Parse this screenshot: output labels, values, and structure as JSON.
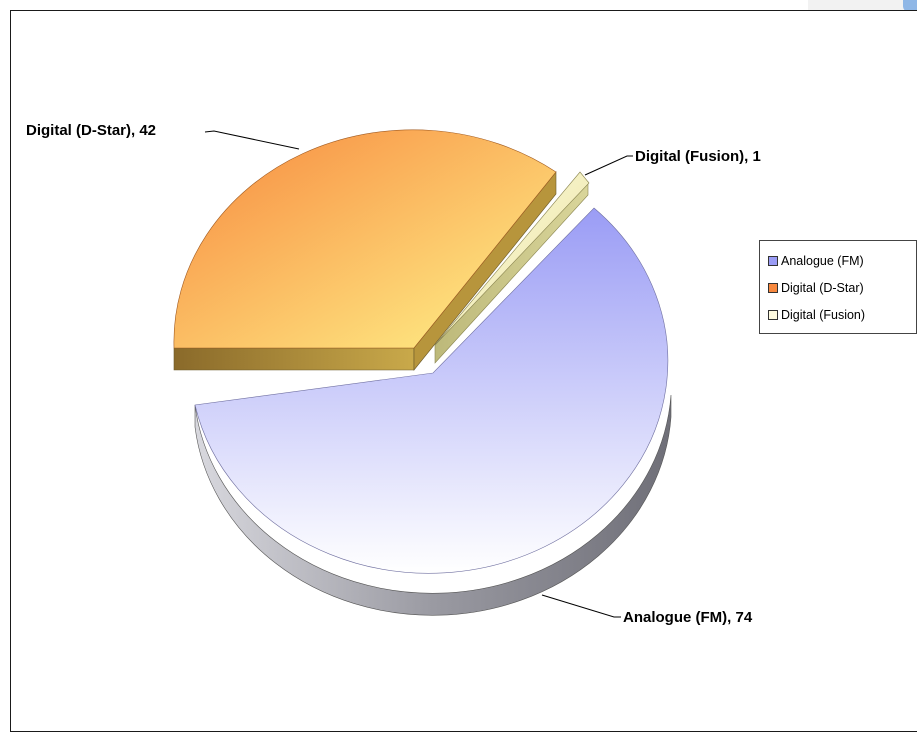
{
  "chart_data": {
    "type": "pie",
    "variant": "3d-exploded",
    "slices": [
      {
        "label": "Analogue (FM)",
        "value": 74,
        "data_label": "Analogue (FM), 74",
        "color": "#9a9cf5",
        "highlight": "#ffffff"
      },
      {
        "label": "Digital (D-Star)",
        "value": 42,
        "data_label": "Digital (D-Star), 42",
        "color": "#f7883e",
        "highlight": "#fff48a"
      },
      {
        "label": "Digital (Fusion)",
        "value": 1,
        "data_label": "Digital (Fusion), 1",
        "color": "#e9e4a2",
        "highlight": "#fffbe0"
      }
    ],
    "legend": {
      "placement": "right",
      "entries": [
        "Analogue (FM)",
        "Digital (D-Star)",
        "Digital (Fusion)"
      ]
    }
  }
}
